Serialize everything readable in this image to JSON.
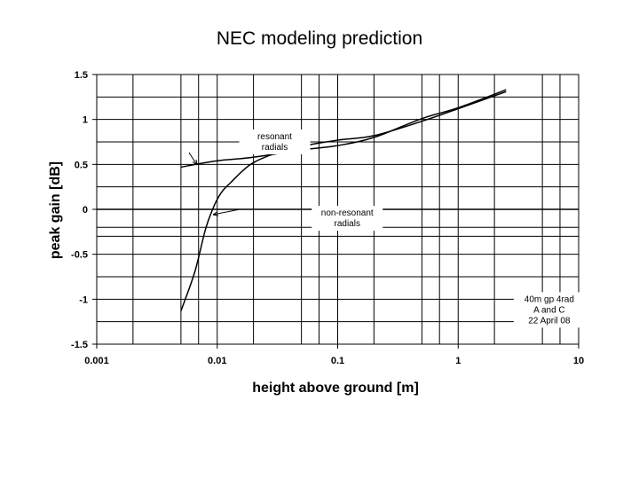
{
  "chart_data": {
    "type": "line",
    "title": "NEC modeling prediction",
    "xlabel": "height above ground [m]",
    "ylabel": "peak gain [dB]",
    "x_scale": "log",
    "xlim": [
      0.001,
      10
    ],
    "ylim": [
      -1.5,
      1.5
    ],
    "x_ticks": [
      "0.001",
      "0.01",
      "0.1",
      "1",
      "10"
    ],
    "y_ticks": [
      "1.5",
      "1",
      "0.5",
      "0",
      "-0.5",
      "-1",
      "-1.5"
    ],
    "grid": true,
    "series": [
      {
        "name": "resonant radials",
        "x": [
          0.005,
          0.01,
          0.02,
          0.05,
          0.1,
          0.2,
          0.5,
          1,
          2.5
        ],
        "y": [
          0.47,
          0.54,
          0.58,
          0.66,
          0.71,
          0.8,
          1.01,
          1.13,
          1.33
        ]
      },
      {
        "name": "non-resonant radials",
        "x": [
          0.005,
          0.0065,
          0.008,
          0.0095,
          0.011,
          0.013,
          0.016,
          0.02,
          0.03,
          0.05,
          0.1,
          0.2,
          0.5,
          1,
          2.5
        ],
        "y": [
          -1.13,
          -0.7,
          -0.22,
          0.05,
          0.2,
          0.3,
          0.42,
          0.52,
          0.62,
          0.7,
          0.77,
          0.82,
          0.98,
          1.12,
          1.31
        ]
      }
    ],
    "annotations": [
      {
        "text": [
          "resonant",
          "radials"
        ],
        "x": 0.03,
        "y": 0.78
      },
      {
        "text": [
          "non-resonant",
          "radials"
        ],
        "x": 0.12,
        "y": -0.07
      },
      {
        "text": [
          "40m gp 4rad",
          "A and C",
          "22 April 08"
        ],
        "x": 5.7,
        "y": -1.03
      }
    ],
    "extra_gridlines_y": [
      -0.2,
      -0.3
    ],
    "colors": {
      "line": "#000000",
      "grid": "#000000"
    }
  }
}
